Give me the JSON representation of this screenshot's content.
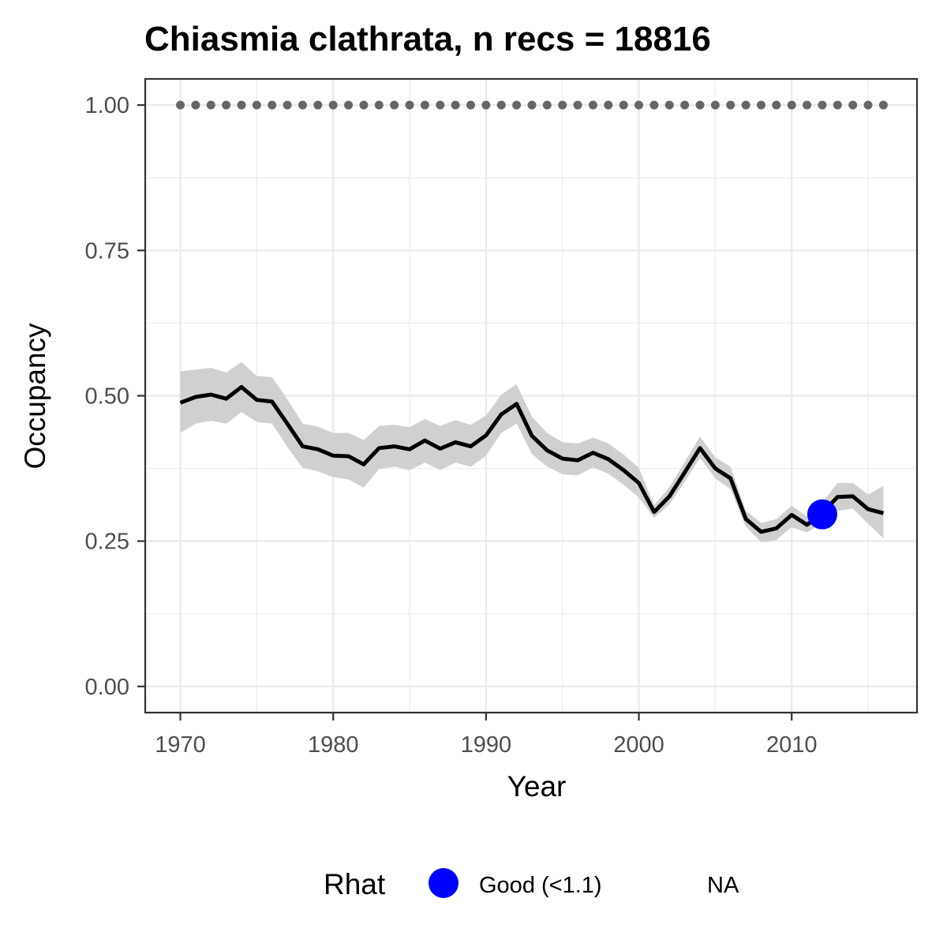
{
  "chart_data": {
    "type": "line",
    "title": "Chiasmia clathrata, n recs = 18816",
    "xlabel": "Year",
    "ylabel": "Occupancy",
    "xlim": [
      1967.7,
      2018.2
    ],
    "ylim": [
      -0.045,
      1.045
    ],
    "x_ticks": [
      1970,
      1980,
      1990,
      2000,
      2010
    ],
    "x_tick_labels": [
      "1970",
      "1980",
      "1990",
      "2000",
      "2010"
    ],
    "y_ticks": [
      0.0,
      0.25,
      0.5,
      0.75,
      1.0
    ],
    "y_tick_labels": [
      "0.00",
      "0.25",
      "0.50",
      "0.75",
      "1.00"
    ],
    "grid": true,
    "colors": {
      "line": "#000000",
      "ribbon": "#d0d0d0",
      "dotted_reference": "#666666",
      "rhat_good": "#0000ff",
      "grid_major": "#ebebeb",
      "panel_border": "#333333"
    },
    "series": [
      {
        "x": [
          1970,
          1971,
          1972,
          1973,
          1974,
          1975,
          1976,
          1977,
          1978,
          1979,
          1980,
          1981,
          1982,
          1983,
          1984,
          1985,
          1986,
          1987,
          1988,
          1989,
          1990,
          1991,
          1992,
          1993,
          1994,
          1995,
          1996,
          1997,
          1998,
          1999,
          2000,
          2001,
          2002,
          2003,
          2004,
          2005,
          2006,
          2007,
          2008,
          2009,
          2010,
          2011,
          2012,
          2013,
          2014,
          2015,
          2016
        ],
        "y": [
          0.488,
          0.498,
          0.502,
          0.495,
          0.515,
          0.493,
          0.49,
          0.452,
          0.413,
          0.408,
          0.397,
          0.396,
          0.382,
          0.41,
          0.413,
          0.408,
          0.423,
          0.409,
          0.42,
          0.413,
          0.432,
          0.468,
          0.486,
          0.431,
          0.406,
          0.392,
          0.389,
          0.402,
          0.391,
          0.372,
          0.35,
          0.3,
          0.327,
          0.368,
          0.41,
          0.375,
          0.358,
          0.288,
          0.266,
          0.272,
          0.295,
          0.278,
          0.298,
          0.326,
          0.327,
          0.305,
          0.298
        ],
        "lower": [
          0.436,
          0.452,
          0.457,
          0.452,
          0.472,
          0.455,
          0.452,
          0.412,
          0.376,
          0.37,
          0.36,
          0.356,
          0.342,
          0.374,
          0.378,
          0.372,
          0.385,
          0.372,
          0.385,
          0.378,
          0.397,
          0.436,
          0.452,
          0.4,
          0.378,
          0.365,
          0.363,
          0.377,
          0.366,
          0.347,
          0.325,
          0.29,
          0.313,
          0.352,
          0.393,
          0.358,
          0.339,
          0.275,
          0.248,
          0.252,
          0.274,
          0.265,
          0.281,
          0.302,
          0.306,
          0.28,
          0.255
        ],
        "upper": [
          0.542,
          0.545,
          0.548,
          0.54,
          0.558,
          0.534,
          0.532,
          0.494,
          0.452,
          0.447,
          0.436,
          0.436,
          0.424,
          0.448,
          0.45,
          0.446,
          0.46,
          0.448,
          0.458,
          0.45,
          0.466,
          0.502,
          0.52,
          0.464,
          0.436,
          0.42,
          0.418,
          0.428,
          0.418,
          0.399,
          0.376,
          0.312,
          0.343,
          0.386,
          0.43,
          0.394,
          0.378,
          0.302,
          0.281,
          0.288,
          0.311,
          0.292,
          0.316,
          0.35,
          0.35,
          0.33,
          0.345
        ]
      }
    ],
    "reference_dots": {
      "y": 1.0,
      "x": [
        1970,
        1971,
        1972,
        1973,
        1974,
        1975,
        1976,
        1977,
        1978,
        1979,
        1980,
        1981,
        1982,
        1983,
        1984,
        1985,
        1986,
        1987,
        1988,
        1989,
        1990,
        1991,
        1992,
        1993,
        1994,
        1995,
        1996,
        1997,
        1998,
        1999,
        2000,
        2001,
        2002,
        2003,
        2004,
        2005,
        2006,
        2007,
        2008,
        2009,
        2010,
        2011,
        2012,
        2013,
        2014,
        2015,
        2016
      ]
    },
    "rhat_points": [
      {
        "x": 2012,
        "y": 0.296,
        "rhat": "Good (<1.1)"
      }
    ],
    "legend": {
      "title": "Rhat",
      "position": "bottom",
      "entries": [
        {
          "label": "Good (<1.1)",
          "color": "#0000ff"
        },
        {
          "label": "NA"
        }
      ]
    }
  }
}
